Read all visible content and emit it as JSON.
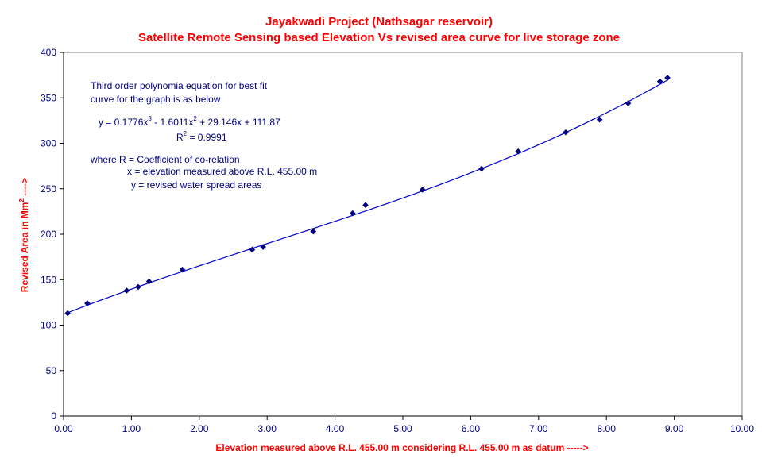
{
  "chart_data": {
    "type": "scatter",
    "title": "Jayakwadi Project (Nathsagar reservoir)",
    "subtitle": "Satellite Remote Sensing based Elevation Vs revised area curve for live storage zone",
    "xlabel": "Elevation measured above R.L. 455.00 m considering R.L. 455.00 m as datum ----->",
    "ylabel": {
      "text": "Revised Area in Mm",
      "superscript": "2",
      "suffix": " ---->"
    },
    "xlim": [
      0,
      10
    ],
    "ylim": [
      0,
      400
    ],
    "x_ticks": [
      "0.00",
      "1.00",
      "2.00",
      "3.00",
      "4.00",
      "5.00",
      "6.00",
      "7.00",
      "8.00",
      "9.00",
      "10.00"
    ],
    "y_ticks": [
      "0",
      "50",
      "100",
      "150",
      "200",
      "250",
      "300",
      "350",
      "400"
    ],
    "grid": false,
    "legend": "none",
    "colors": {
      "title": "#ff0000",
      "points": "#000080",
      "trendline": "#0000cc",
      "axis_text": "#000080"
    },
    "series": [
      {
        "marker": "diamond",
        "x": [
          0.06,
          0.35,
          0.93,
          1.1,
          1.26,
          1.75,
          2.78,
          2.94,
          3.68,
          4.26,
          4.45,
          5.29,
          6.16,
          6.7,
          7.4,
          7.9,
          8.32,
          8.79,
          8.9
        ],
        "y": [
          113,
          124,
          138,
          142,
          148,
          161,
          183,
          186,
          203,
          223,
          232,
          249,
          272,
          291,
          312,
          326,
          344,
          368,
          372
        ]
      }
    ],
    "trendline": {
      "kind": "polynomial",
      "order": 3,
      "coefficients": [
        111.87,
        29.146,
        -1.6011,
        0.1776
      ],
      "x_range": [
        0.06,
        8.9
      ]
    },
    "annotations": {
      "line1": "Third order polynomia equation for best fit",
      "line2": "curve for the graph is as below",
      "eq_y": "y = 0.1776x",
      "eq_sup1": "3",
      "eq_a": " - 1.6011x",
      "eq_sup2": "2",
      "eq_b": " + 29.146x + 111.87",
      "r_label": "R",
      "r_sup": "2",
      "r_value": " = 0.9991",
      "where_line": "where R = Coefficient of co-relation",
      "x_line": "x   = elevation measured above R.L. 455.00 m",
      "y_line": "y = revised water spread areas"
    }
  }
}
